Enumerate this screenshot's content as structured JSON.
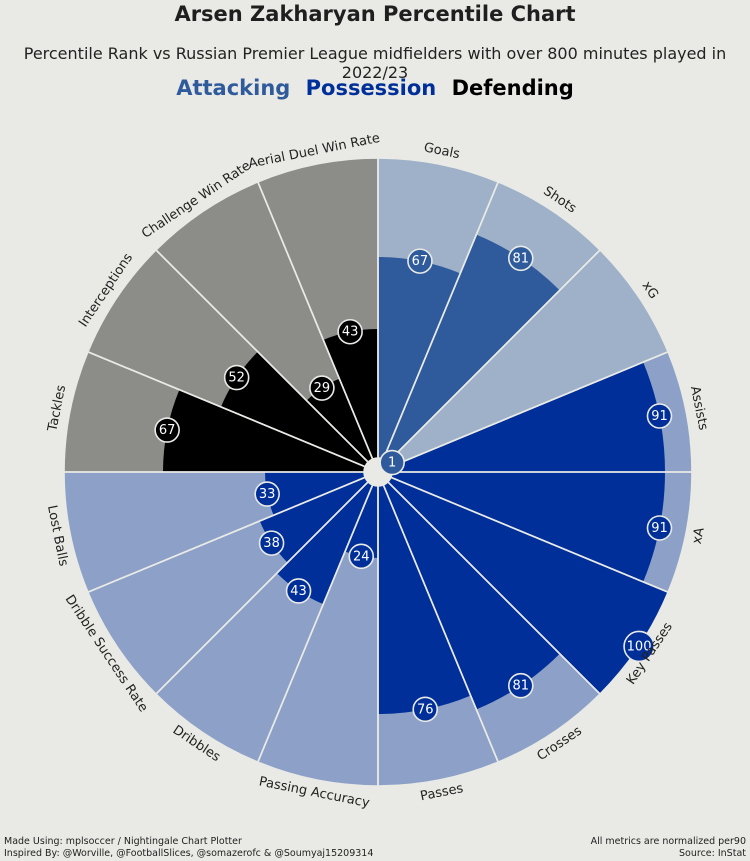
{
  "title": "Arsen Zakharyan Percentile Chart",
  "subtitle": "Percentile Rank vs Russian Premier League midfielders with over 800 minutes played in 2022/23",
  "legend": [
    {
      "label": "Attacking",
      "color": "#2f5b9c"
    },
    {
      "label": "Possession",
      "color": "#002f99"
    },
    {
      "label": "Defending",
      "color": "#000000"
    }
  ],
  "footer": {
    "made_using": "Made Using: mplsoccer / Nightingale Chart Plotter",
    "inspired_by": "Inspired By: @Worville, @FootballSlices, @somazerofc & @Soumyaj15209314",
    "normalized": "All metrics are normalized per90",
    "source": "Source: InStat"
  },
  "colors": {
    "background": "#e9eae5",
    "attacking_fill": "#2f5b9c",
    "attacking_bg": "#9eb1c9",
    "possession_fill": "#002f99",
    "possession_bg": "#8ca0c8",
    "defending_fill": "#000000",
    "defending_bg": "#8c8c88",
    "edge": "#e9eae5"
  },
  "chart_data": {
    "type": "pie",
    "subtype": "polar-area (nightingale / percentile radar)",
    "value_range": [
      0,
      100
    ],
    "start": "top, clockwise",
    "metrics": [
      {
        "name": "Goals",
        "value": 67,
        "group": "Attacking"
      },
      {
        "name": "Shots",
        "value": 81,
        "group": "Attacking"
      },
      {
        "name": "xG",
        "value": 1,
        "group": "Attacking"
      },
      {
        "name": "Assists",
        "value": 91,
        "group": "Possession"
      },
      {
        "name": "xA",
        "value": 91,
        "group": "Possession"
      },
      {
        "name": "Key Passes",
        "value": 100,
        "group": "Possession"
      },
      {
        "name": "Crosses",
        "value": 81,
        "group": "Possession"
      },
      {
        "name": "Passes",
        "value": 76,
        "group": "Possession"
      },
      {
        "name": "Passing Accuracy",
        "value": 24,
        "group": "Possession"
      },
      {
        "name": "Dribbles",
        "value": 43,
        "group": "Possession"
      },
      {
        "name": "Dribble Success Rate",
        "value": 38,
        "group": "Possession"
      },
      {
        "name": "Lost Balls",
        "value": 33,
        "group": "Possession"
      },
      {
        "name": "Tackles",
        "value": 67,
        "group": "Defending"
      },
      {
        "name": "Interceptions",
        "value": 52,
        "group": "Defending"
      },
      {
        "name": "Challenge Win Rate",
        "value": 29,
        "group": "Defending"
      },
      {
        "name": "Aerial Duel Win Rate",
        "value": 43,
        "group": "Defending"
      }
    ]
  }
}
